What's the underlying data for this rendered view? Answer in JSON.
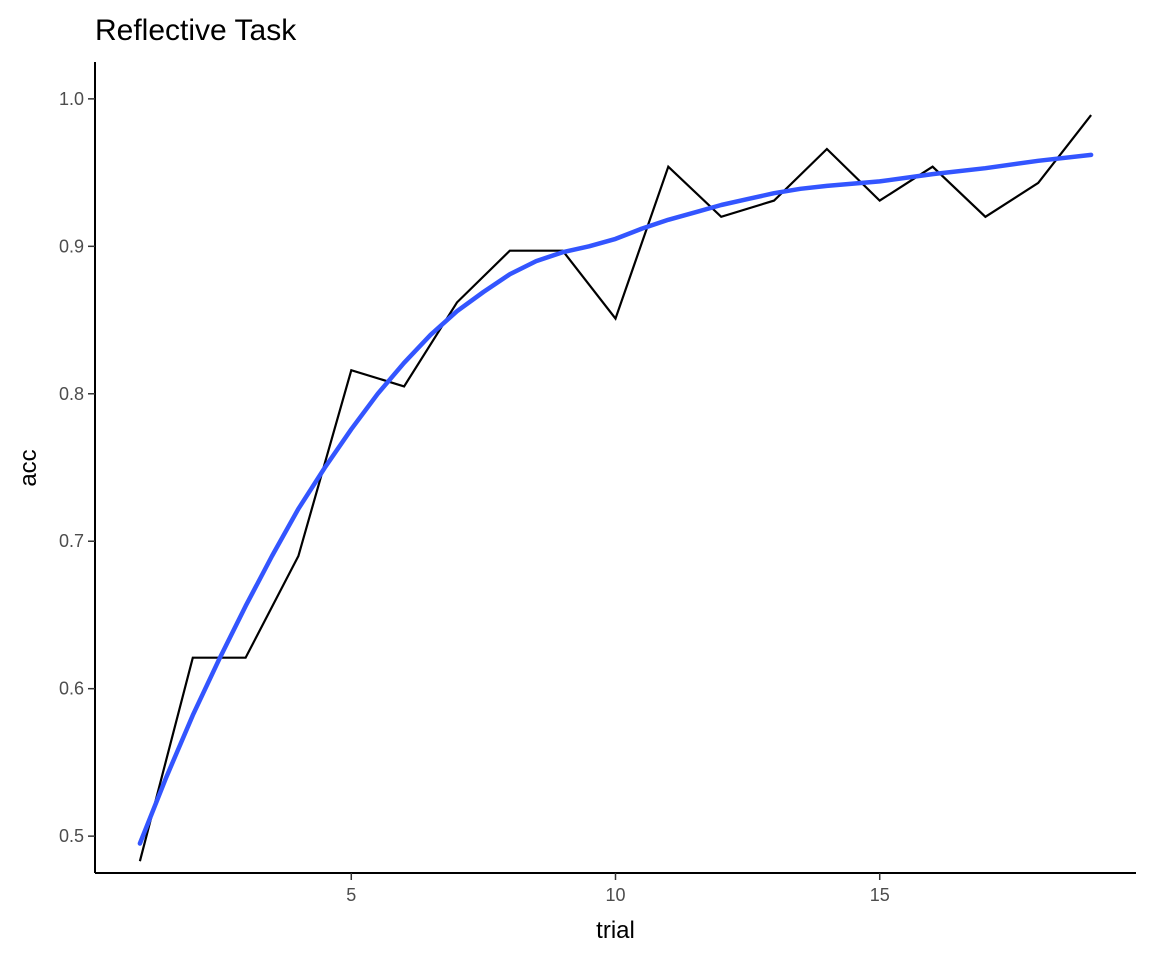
{
  "chart_data": {
    "type": "line",
    "title": "Reflective Task",
    "xlabel": "trial",
    "ylabel": "acc",
    "xlim": [
      0.15,
      19.85
    ],
    "ylim": [
      0.475,
      1.025
    ],
    "x_ticks": [
      5,
      10,
      15
    ],
    "y_ticks": [
      0.5,
      0.6,
      0.7,
      0.8,
      0.9,
      1.0
    ],
    "y_tick_labels": [
      "0.5",
      "0.6",
      "0.7",
      "0.8",
      "0.9",
      "1.0"
    ],
    "grid": false,
    "legend": "none",
    "series": [
      {
        "kind": "raw",
        "color": "#000000",
        "x": [
          1,
          2,
          3,
          4,
          5,
          6,
          7,
          8,
          9,
          10,
          11,
          12,
          13,
          14,
          15,
          16,
          17,
          18,
          19
        ],
        "y": [
          0.483,
          0.621,
          0.621,
          0.69,
          0.816,
          0.805,
          0.862,
          0.897,
          0.897,
          0.851,
          0.954,
          0.92,
          0.931,
          0.966,
          0.931,
          0.954,
          0.92,
          0.943,
          0.989
        ]
      },
      {
        "kind": "smooth",
        "color": "#3355ff",
        "x": [
          1,
          1.5,
          2,
          2.5,
          3,
          3.5,
          4,
          4.5,
          5,
          5.5,
          6,
          6.5,
          7,
          7.5,
          8,
          8.5,
          9,
          9.5,
          10,
          10.5,
          11,
          11.5,
          12,
          12.5,
          13,
          13.5,
          14,
          15,
          16,
          17,
          18,
          19
        ],
        "y": [
          0.495,
          0.54,
          0.582,
          0.62,
          0.656,
          0.69,
          0.722,
          0.75,
          0.776,
          0.8,
          0.821,
          0.84,
          0.856,
          0.869,
          0.881,
          0.89,
          0.896,
          0.9,
          0.905,
          0.912,
          0.918,
          0.923,
          0.928,
          0.932,
          0.936,
          0.939,
          0.941,
          0.944,
          0.949,
          0.953,
          0.958,
          0.962
        ]
      }
    ]
  }
}
